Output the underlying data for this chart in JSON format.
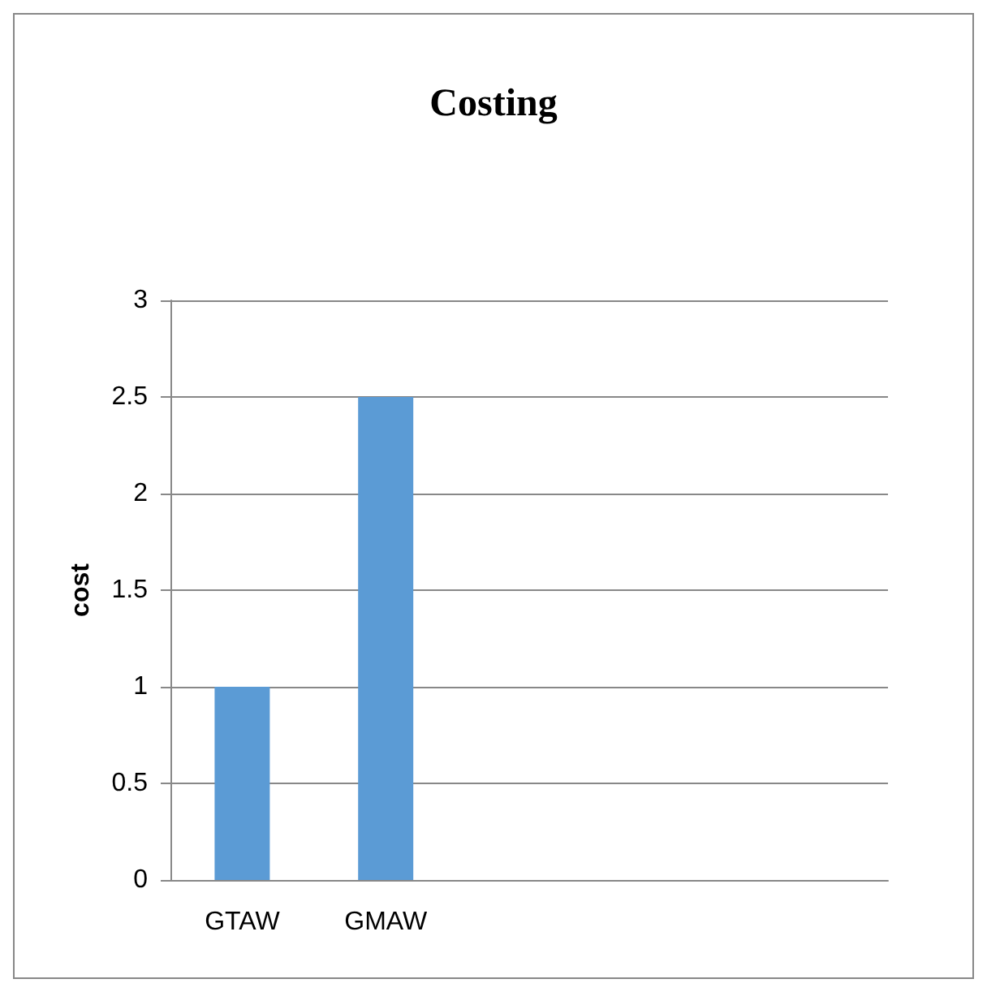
{
  "chart_data": {
    "type": "bar",
    "title": "Costing",
    "ylabel": "cost",
    "categories": [
      "GTAW",
      "GMAW",
      null,
      null,
      null
    ],
    "values": [
      1,
      2.5,
      null,
      null,
      null
    ],
    "color": "#5b9bd5",
    "ylim": [
      0,
      3
    ],
    "yticks": [
      0,
      0.5,
      1,
      1.5,
      2,
      2.5,
      3
    ],
    "grid": "y"
  }
}
